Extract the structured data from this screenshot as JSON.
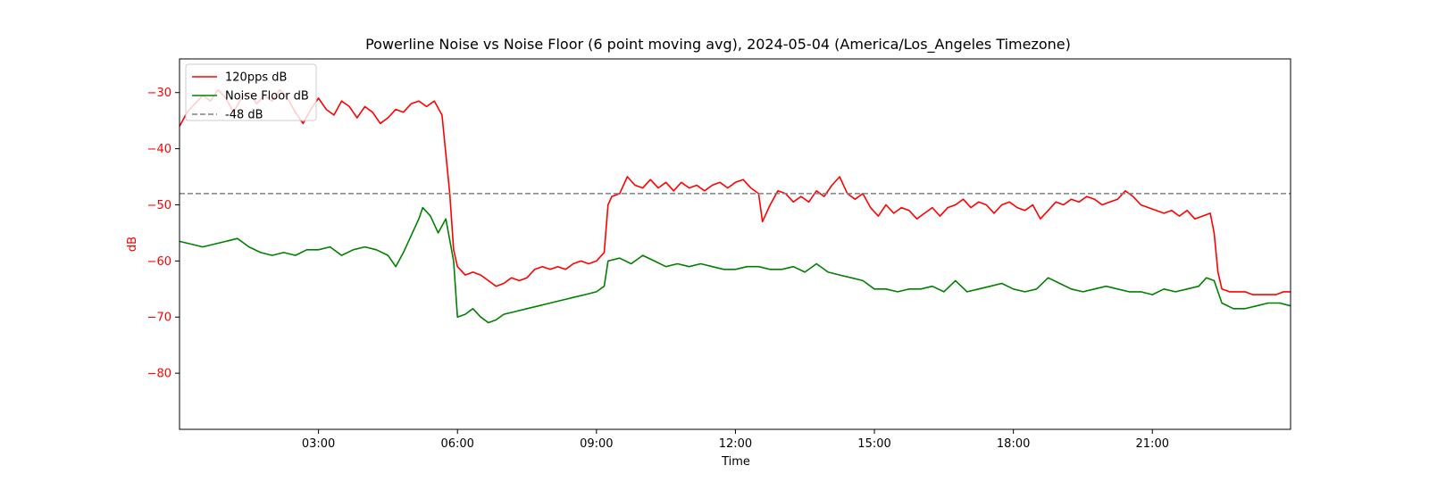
{
  "chart_data": {
    "type": "line",
    "title": "Powerline Noise vs Noise Floor (6 point moving avg), 2024-05-04 (America/Los_Angeles Timezone)",
    "xlabel": "Time",
    "ylabel": "dB",
    "ylabel_color": "#ff0000",
    "xlim": [
      "00:00",
      "23:59"
    ],
    "ylim": [
      -90,
      -24
    ],
    "x_ticks": [
      "03:00",
      "06:00",
      "09:00",
      "12:00",
      "15:00",
      "18:00",
      "21:00"
    ],
    "y_ticks": [
      -30,
      -40,
      -50,
      -60,
      -70,
      -80
    ],
    "y_tick_color": "#ff0000",
    "grid": false,
    "legend_position": "top-left",
    "series": [
      {
        "name": "120pps dB",
        "color": "#ff0000",
        "style": "solid",
        "points": [
          [
            "00:00",
            -36.0
          ],
          [
            "00:10",
            -33.5
          ],
          [
            "00:20",
            -32.0
          ],
          [
            "00:30",
            -30.5
          ],
          [
            "00:40",
            -31.5
          ],
          [
            "00:50",
            -29.5
          ],
          [
            "01:00",
            -31.0
          ],
          [
            "01:10",
            -33.5
          ],
          [
            "01:20",
            -31.0
          ],
          [
            "01:30",
            -30.0
          ],
          [
            "01:40",
            -32.0
          ],
          [
            "01:50",
            -30.5
          ],
          [
            "02:00",
            -31.5
          ],
          [
            "02:10",
            -29.5
          ],
          [
            "02:20",
            -31.0
          ],
          [
            "02:30",
            -33.5
          ],
          [
            "02:40",
            -35.5
          ],
          [
            "02:50",
            -33.0
          ],
          [
            "03:00",
            -31.0
          ],
          [
            "03:10",
            -33.0
          ],
          [
            "03:20",
            -34.0
          ],
          [
            "03:30",
            -31.5
          ],
          [
            "03:40",
            -32.5
          ],
          [
            "03:50",
            -34.5
          ],
          [
            "04:00",
            -32.5
          ],
          [
            "04:10",
            -33.5
          ],
          [
            "04:20",
            -35.5
          ],
          [
            "04:30",
            -34.5
          ],
          [
            "04:40",
            -33.0
          ],
          [
            "04:50",
            -33.5
          ],
          [
            "05:00",
            -32.0
          ],
          [
            "05:10",
            -31.5
          ],
          [
            "05:20",
            -32.5
          ],
          [
            "05:30",
            -31.5
          ],
          [
            "05:40",
            -34.0
          ],
          [
            "05:50",
            -48.0
          ],
          [
            "05:55",
            -58.0
          ],
          [
            "06:00",
            -61.0
          ],
          [
            "06:10",
            -62.5
          ],
          [
            "06:20",
            -62.0
          ],
          [
            "06:30",
            -62.5
          ],
          [
            "06:40",
            -63.5
          ],
          [
            "06:50",
            -64.5
          ],
          [
            "07:00",
            -64.0
          ],
          [
            "07:10",
            -63.0
          ],
          [
            "07:20",
            -63.5
          ],
          [
            "07:30",
            -63.0
          ],
          [
            "07:40",
            -61.5
          ],
          [
            "07:50",
            -61.0
          ],
          [
            "08:00",
            -61.5
          ],
          [
            "08:10",
            -61.0
          ],
          [
            "08:20",
            -61.5
          ],
          [
            "08:30",
            -60.5
          ],
          [
            "08:40",
            -60.0
          ],
          [
            "08:50",
            -60.5
          ],
          [
            "09:00",
            -60.0
          ],
          [
            "09:10",
            -58.5
          ],
          [
            "09:15",
            -50.0
          ],
          [
            "09:20",
            -48.5
          ],
          [
            "09:30",
            -48.0
          ],
          [
            "09:40",
            -45.0
          ],
          [
            "09:50",
            -46.5
          ],
          [
            "10:00",
            -47.0
          ],
          [
            "10:10",
            -45.5
          ],
          [
            "10:20",
            -47.0
          ],
          [
            "10:30",
            -46.0
          ],
          [
            "10:40",
            -47.5
          ],
          [
            "10:50",
            -46.0
          ],
          [
            "11:00",
            -47.0
          ],
          [
            "11:10",
            -46.5
          ],
          [
            "11:20",
            -47.5
          ],
          [
            "11:30",
            -46.5
          ],
          [
            "11:40",
            -46.0
          ],
          [
            "11:50",
            -47.0
          ],
          [
            "12:00",
            -46.0
          ],
          [
            "12:10",
            -45.5
          ],
          [
            "12:20",
            -47.0
          ],
          [
            "12:30",
            -48.0
          ],
          [
            "12:35",
            -53.0
          ],
          [
            "12:45",
            -50.0
          ],
          [
            "12:55",
            -47.5
          ],
          [
            "13:05",
            -48.0
          ],
          [
            "13:15",
            -49.5
          ],
          [
            "13:25",
            -48.5
          ],
          [
            "13:35",
            -49.5
          ],
          [
            "13:45",
            -47.5
          ],
          [
            "13:55",
            -48.5
          ],
          [
            "14:05",
            -46.5
          ],
          [
            "14:15",
            -45.0
          ],
          [
            "14:25",
            -48.0
          ],
          [
            "14:35",
            -49.0
          ],
          [
            "14:45",
            -48.0
          ],
          [
            "14:55",
            -50.5
          ],
          [
            "15:05",
            -52.0
          ],
          [
            "15:15",
            -50.0
          ],
          [
            "15:25",
            -51.5
          ],
          [
            "15:35",
            -50.5
          ],
          [
            "15:45",
            -51.0
          ],
          [
            "15:55",
            -52.5
          ],
          [
            "16:05",
            -51.5
          ],
          [
            "16:15",
            -50.5
          ],
          [
            "16:25",
            -52.0
          ],
          [
            "16:35",
            -50.5
          ],
          [
            "16:45",
            -50.0
          ],
          [
            "16:55",
            -49.0
          ],
          [
            "17:05",
            -50.5
          ],
          [
            "17:15",
            -49.5
          ],
          [
            "17:25",
            -50.0
          ],
          [
            "17:35",
            -51.5
          ],
          [
            "17:45",
            -50.0
          ],
          [
            "17:55",
            -49.5
          ],
          [
            "18:05",
            -50.5
          ],
          [
            "18:15",
            -51.0
          ],
          [
            "18:25",
            -50.0
          ],
          [
            "18:35",
            -52.5
          ],
          [
            "18:45",
            -51.0
          ],
          [
            "18:55",
            -49.5
          ],
          [
            "19:05",
            -50.0
          ],
          [
            "19:15",
            -49.0
          ],
          [
            "19:25",
            -49.5
          ],
          [
            "19:35",
            -48.5
          ],
          [
            "19:45",
            -49.0
          ],
          [
            "19:55",
            -50.0
          ],
          [
            "20:05",
            -49.5
          ],
          [
            "20:15",
            -49.0
          ],
          [
            "20:25",
            -47.5
          ],
          [
            "20:35",
            -48.5
          ],
          [
            "20:45",
            -50.0
          ],
          [
            "20:55",
            -50.5
          ],
          [
            "21:05",
            -51.0
          ],
          [
            "21:15",
            -51.5
          ],
          [
            "21:25",
            -51.0
          ],
          [
            "21:35",
            -52.0
          ],
          [
            "21:45",
            -51.0
          ],
          [
            "21:55",
            -52.5
          ],
          [
            "22:05",
            -52.0
          ],
          [
            "22:15",
            -51.5
          ],
          [
            "22:20",
            -55.0
          ],
          [
            "22:25",
            -62.0
          ],
          [
            "22:30",
            -65.0
          ],
          [
            "22:40",
            -65.5
          ],
          [
            "22:50",
            -65.5
          ],
          [
            "23:00",
            -65.5
          ],
          [
            "23:10",
            -66.0
          ],
          [
            "23:20",
            -66.0
          ],
          [
            "23:30",
            -66.0
          ],
          [
            "23:40",
            -66.0
          ],
          [
            "23:50",
            -65.5
          ],
          [
            "23:59",
            -65.5
          ]
        ]
      },
      {
        "name": "Noise Floor dB",
        "color": "#008000",
        "style": "solid",
        "points": [
          [
            "00:00",
            -56.5
          ],
          [
            "00:15",
            -57.0
          ],
          [
            "00:30",
            -57.5
          ],
          [
            "00:45",
            -57.0
          ],
          [
            "01:00",
            -56.5
          ],
          [
            "01:15",
            -56.0
          ],
          [
            "01:30",
            -57.5
          ],
          [
            "01:45",
            -58.5
          ],
          [
            "02:00",
            -59.0
          ],
          [
            "02:15",
            -58.5
          ],
          [
            "02:30",
            -59.0
          ],
          [
            "02:45",
            -58.0
          ],
          [
            "03:00",
            -58.0
          ],
          [
            "03:15",
            -57.5
          ],
          [
            "03:30",
            -59.0
          ],
          [
            "03:45",
            -58.0
          ],
          [
            "04:00",
            -57.5
          ],
          [
            "04:15",
            -58.0
          ],
          [
            "04:30",
            -59.0
          ],
          [
            "04:40",
            -61.0
          ],
          [
            "04:50",
            -58.5
          ],
          [
            "05:00",
            -55.5
          ],
          [
            "05:10",
            -52.5
          ],
          [
            "05:15",
            -50.5
          ],
          [
            "05:25",
            -52.0
          ],
          [
            "05:35",
            -55.0
          ],
          [
            "05:45",
            -52.5
          ],
          [
            "05:55",
            -60.0
          ],
          [
            "06:00",
            -70.0
          ],
          [
            "06:10",
            -69.5
          ],
          [
            "06:20",
            -68.5
          ],
          [
            "06:30",
            -70.0
          ],
          [
            "06:40",
            -71.0
          ],
          [
            "06:50",
            -70.5
          ],
          [
            "07:00",
            -69.5
          ],
          [
            "07:15",
            -69.0
          ],
          [
            "07:30",
            -68.5
          ],
          [
            "07:45",
            -68.0
          ],
          [
            "08:00",
            -67.5
          ],
          [
            "08:15",
            -67.0
          ],
          [
            "08:30",
            -66.5
          ],
          [
            "08:45",
            -66.0
          ],
          [
            "09:00",
            -65.5
          ],
          [
            "09:10",
            -64.5
          ],
          [
            "09:15",
            -60.0
          ],
          [
            "09:30",
            -59.5
          ],
          [
            "09:45",
            -60.5
          ],
          [
            "10:00",
            -59.0
          ],
          [
            "10:15",
            -60.0
          ],
          [
            "10:30",
            -61.0
          ],
          [
            "10:45",
            -60.5
          ],
          [
            "11:00",
            -61.0
          ],
          [
            "11:15",
            -60.5
          ],
          [
            "11:30",
            -61.0
          ],
          [
            "11:45",
            -61.5
          ],
          [
            "12:00",
            -61.5
          ],
          [
            "12:15",
            -61.0
          ],
          [
            "12:30",
            -61.0
          ],
          [
            "12:45",
            -61.5
          ],
          [
            "13:00",
            -61.5
          ],
          [
            "13:15",
            -61.0
          ],
          [
            "13:30",
            -62.0
          ],
          [
            "13:45",
            -60.5
          ],
          [
            "14:00",
            -62.0
          ],
          [
            "14:15",
            -62.5
          ],
          [
            "14:30",
            -63.0
          ],
          [
            "14:45",
            -63.5
          ],
          [
            "15:00",
            -65.0
          ],
          [
            "15:15",
            -65.0
          ],
          [
            "15:30",
            -65.5
          ],
          [
            "15:45",
            -65.0
          ],
          [
            "16:00",
            -65.0
          ],
          [
            "16:15",
            -64.5
          ],
          [
            "16:30",
            -65.5
          ],
          [
            "16:45",
            -63.5
          ],
          [
            "17:00",
            -65.5
          ],
          [
            "17:15",
            -65.0
          ],
          [
            "17:30",
            -64.5
          ],
          [
            "17:45",
            -64.0
          ],
          [
            "18:00",
            -65.0
          ],
          [
            "18:15",
            -65.5
          ],
          [
            "18:30",
            -65.0
          ],
          [
            "18:45",
            -63.0
          ],
          [
            "19:00",
            -64.0
          ],
          [
            "19:15",
            -65.0
          ],
          [
            "19:30",
            -65.5
          ],
          [
            "19:45",
            -65.0
          ],
          [
            "20:00",
            -64.5
          ],
          [
            "20:15",
            -65.0
          ],
          [
            "20:30",
            -65.5
          ],
          [
            "20:45",
            -65.5
          ],
          [
            "21:00",
            -66.0
          ],
          [
            "21:15",
            -65.0
          ],
          [
            "21:30",
            -65.5
          ],
          [
            "21:45",
            -65.0
          ],
          [
            "22:00",
            -64.5
          ],
          [
            "22:10",
            -63.0
          ],
          [
            "22:20",
            -63.5
          ],
          [
            "22:30",
            -67.5
          ],
          [
            "22:45",
            -68.5
          ],
          [
            "23:00",
            -68.5
          ],
          [
            "23:15",
            -68.0
          ],
          [
            "23:30",
            -67.5
          ],
          [
            "23:45",
            -67.5
          ],
          [
            "23:59",
            -68.0
          ]
        ]
      },
      {
        "name": "-48 dB",
        "color": "#808080",
        "style": "dashed",
        "points": [
          [
            "00:00",
            -48
          ],
          [
            "23:59",
            -48
          ]
        ]
      }
    ]
  }
}
